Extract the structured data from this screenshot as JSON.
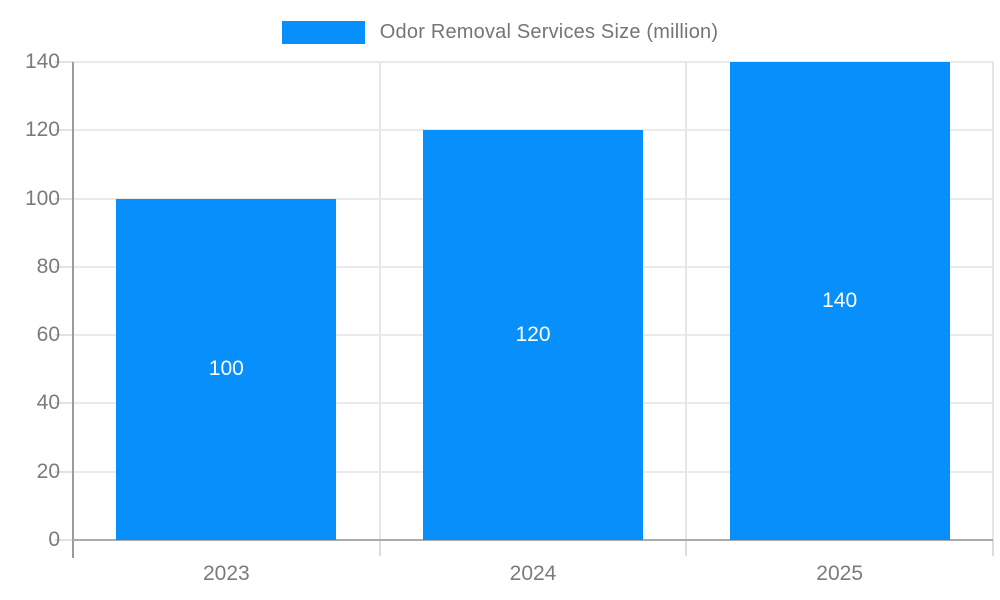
{
  "legend": {
    "label": "Odor Removal Services Size (million)"
  },
  "chart_data": {
    "type": "bar",
    "title": "Odor Removal Services Size (million)",
    "categories": [
      "2023",
      "2024",
      "2025"
    ],
    "series": [
      {
        "name": "Odor Removal Services Size (million)",
        "values": [
          100,
          120,
          140
        ]
      }
    ],
    "data_labels": [
      "100",
      "120",
      "140"
    ],
    "xlabel": "",
    "ylabel": "",
    "ylim": [
      0,
      140
    ],
    "yticks": [
      0,
      20,
      40,
      60,
      80,
      100,
      120,
      140
    ],
    "grid": true,
    "legend_position": "top",
    "colors": {
      "bar": "#0790FB",
      "data_label": "#FFFFFF",
      "legend_text": "#757575",
      "axis_text": "#7B7B7B",
      "gridline": "#EAEAEA",
      "axis_line": "#ABABAB",
      "background": "#FFFFFF"
    }
  }
}
